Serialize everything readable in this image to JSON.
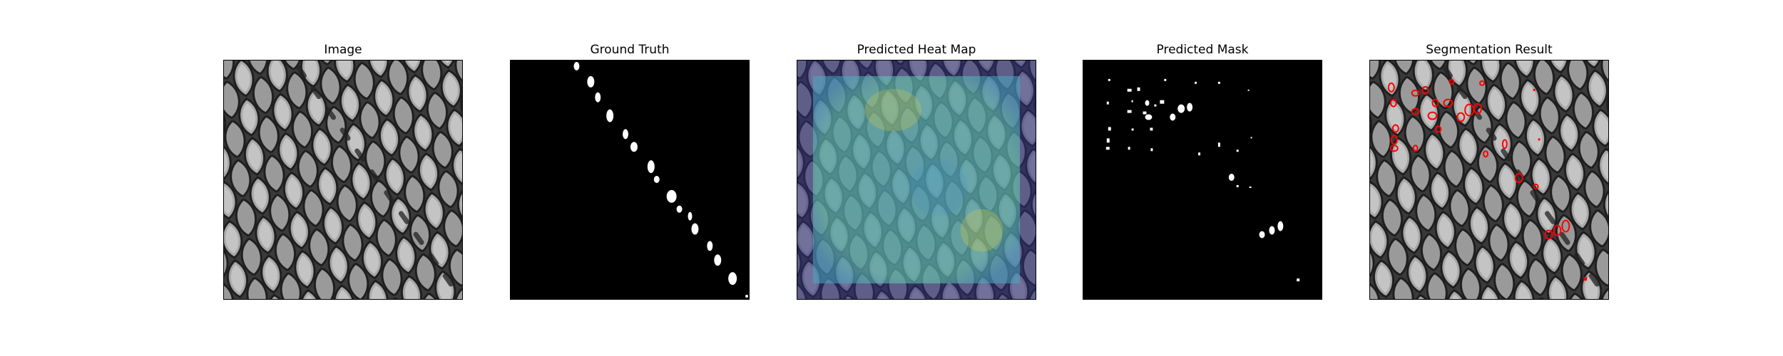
{
  "panels": [
    {
      "title": "Image"
    },
    {
      "title": "Ground Truth"
    },
    {
      "title": "Predicted Heat Map"
    },
    {
      "title": "Predicted Mask"
    },
    {
      "title": "Segmentation Result"
    }
  ],
  "colors": {
    "background": "#ffffff",
    "mask_foreground": "#ffffff",
    "mask_background": "#000000",
    "heat_low": "#2e2e7a",
    "heat_mid": "#5fd0c0",
    "heat_high": "#e0d040",
    "contour": "#ff0000"
  }
}
